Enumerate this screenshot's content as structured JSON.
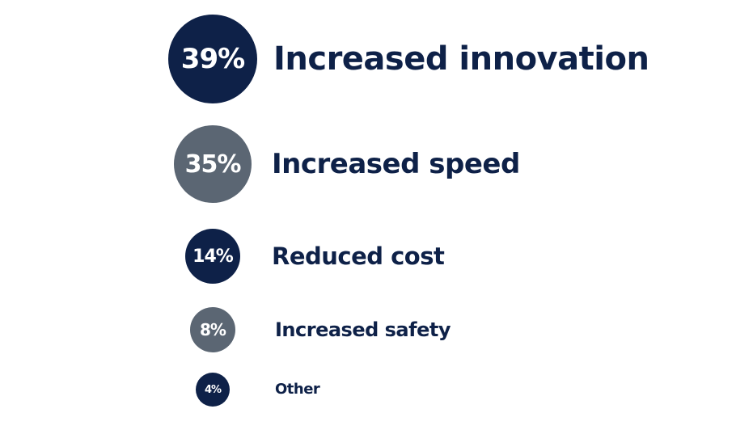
{
  "chart_data": {
    "type": "bubble",
    "title": "",
    "colors": {
      "navy": "#0e2148",
      "slate": "#5b6673"
    },
    "items": [
      {
        "value_label": "39%",
        "value": 39,
        "label": "Increased innovation",
        "color": "#0e2148"
      },
      {
        "value_label": "35%",
        "value": 35,
        "label": "Increased speed",
        "color": "#5b6673"
      },
      {
        "value_label": "14%",
        "value": 14,
        "label": "Reduced cost",
        "color": "#0e2148"
      },
      {
        "value_label": "8%",
        "value": 8,
        "label": "Increased safety",
        "color": "#5b6673"
      },
      {
        "value_label": "4%",
        "value": 4,
        "label": "Other",
        "color": "#0e2148"
      }
    ]
  }
}
